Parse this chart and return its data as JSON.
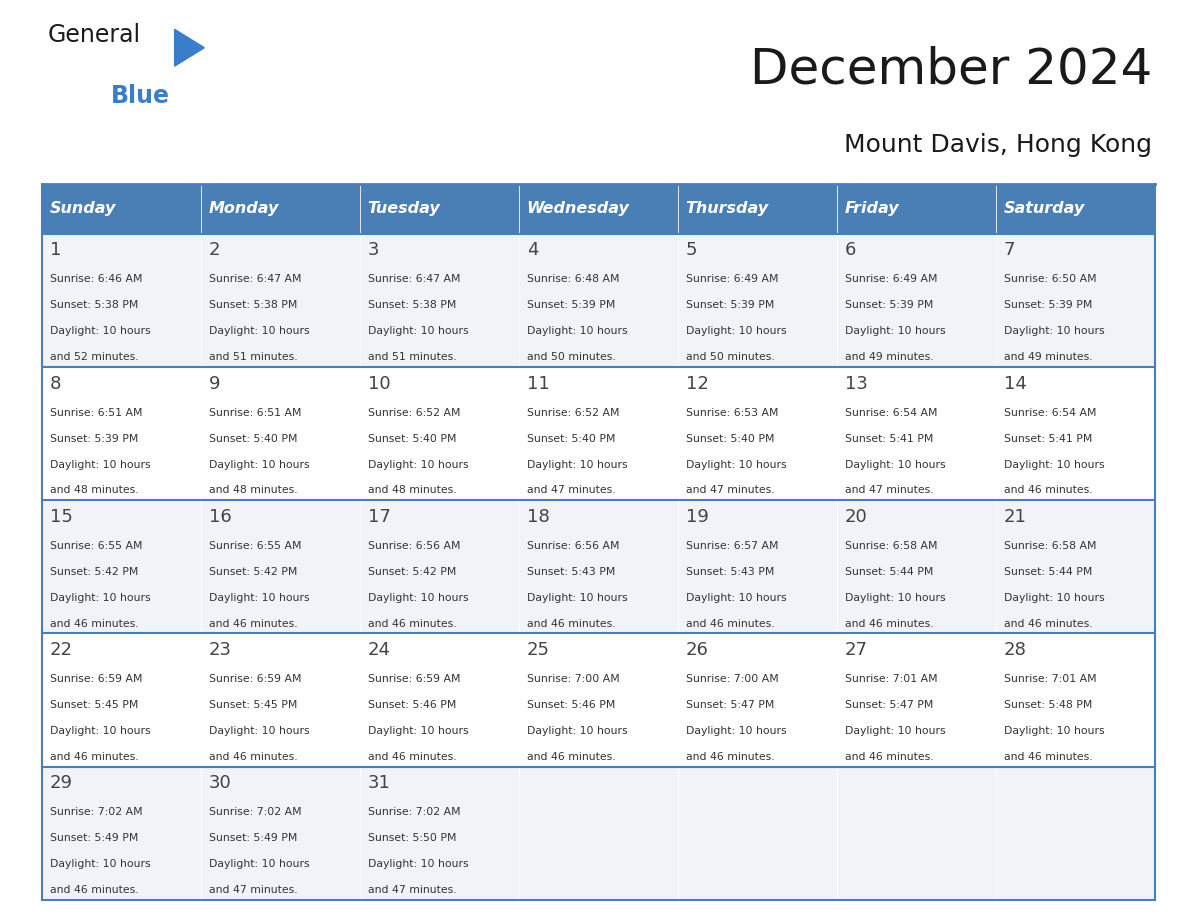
{
  "title": "December 2024",
  "subtitle": "Mount Davis, Hong Kong",
  "header_color": "#4a7fb5",
  "header_text_color": "#ffffff",
  "days_of_week": [
    "Sunday",
    "Monday",
    "Tuesday",
    "Wednesday",
    "Thursday",
    "Friday",
    "Saturday"
  ],
  "calendar": [
    [
      {
        "day": 1,
        "sunrise": "6:46 AM",
        "sunset": "5:38 PM",
        "daylight_hours": 10,
        "daylight_minutes": 52
      },
      {
        "day": 2,
        "sunrise": "6:47 AM",
        "sunset": "5:38 PM",
        "daylight_hours": 10,
        "daylight_minutes": 51
      },
      {
        "day": 3,
        "sunrise": "6:47 AM",
        "sunset": "5:38 PM",
        "daylight_hours": 10,
        "daylight_minutes": 51
      },
      {
        "day": 4,
        "sunrise": "6:48 AM",
        "sunset": "5:39 PM",
        "daylight_hours": 10,
        "daylight_minutes": 50
      },
      {
        "day": 5,
        "sunrise": "6:49 AM",
        "sunset": "5:39 PM",
        "daylight_hours": 10,
        "daylight_minutes": 50
      },
      {
        "day": 6,
        "sunrise": "6:49 AM",
        "sunset": "5:39 PM",
        "daylight_hours": 10,
        "daylight_minutes": 49
      },
      {
        "day": 7,
        "sunrise": "6:50 AM",
        "sunset": "5:39 PM",
        "daylight_hours": 10,
        "daylight_minutes": 49
      }
    ],
    [
      {
        "day": 8,
        "sunrise": "6:51 AM",
        "sunset": "5:39 PM",
        "daylight_hours": 10,
        "daylight_minutes": 48
      },
      {
        "day": 9,
        "sunrise": "6:51 AM",
        "sunset": "5:40 PM",
        "daylight_hours": 10,
        "daylight_minutes": 48
      },
      {
        "day": 10,
        "sunrise": "6:52 AM",
        "sunset": "5:40 PM",
        "daylight_hours": 10,
        "daylight_minutes": 48
      },
      {
        "day": 11,
        "sunrise": "6:52 AM",
        "sunset": "5:40 PM",
        "daylight_hours": 10,
        "daylight_minutes": 47
      },
      {
        "day": 12,
        "sunrise": "6:53 AM",
        "sunset": "5:40 PM",
        "daylight_hours": 10,
        "daylight_minutes": 47
      },
      {
        "day": 13,
        "sunrise": "6:54 AM",
        "sunset": "5:41 PM",
        "daylight_hours": 10,
        "daylight_minutes": 47
      },
      {
        "day": 14,
        "sunrise": "6:54 AM",
        "sunset": "5:41 PM",
        "daylight_hours": 10,
        "daylight_minutes": 46
      }
    ],
    [
      {
        "day": 15,
        "sunrise": "6:55 AM",
        "sunset": "5:42 PM",
        "daylight_hours": 10,
        "daylight_minutes": 46
      },
      {
        "day": 16,
        "sunrise": "6:55 AM",
        "sunset": "5:42 PM",
        "daylight_hours": 10,
        "daylight_minutes": 46
      },
      {
        "day": 17,
        "sunrise": "6:56 AM",
        "sunset": "5:42 PM",
        "daylight_hours": 10,
        "daylight_minutes": 46
      },
      {
        "day": 18,
        "sunrise": "6:56 AM",
        "sunset": "5:43 PM",
        "daylight_hours": 10,
        "daylight_minutes": 46
      },
      {
        "day": 19,
        "sunrise": "6:57 AM",
        "sunset": "5:43 PM",
        "daylight_hours": 10,
        "daylight_minutes": 46
      },
      {
        "day": 20,
        "sunrise": "6:58 AM",
        "sunset": "5:44 PM",
        "daylight_hours": 10,
        "daylight_minutes": 46
      },
      {
        "day": 21,
        "sunrise": "6:58 AM",
        "sunset": "5:44 PM",
        "daylight_hours": 10,
        "daylight_minutes": 46
      }
    ],
    [
      {
        "day": 22,
        "sunrise": "6:59 AM",
        "sunset": "5:45 PM",
        "daylight_hours": 10,
        "daylight_minutes": 46
      },
      {
        "day": 23,
        "sunrise": "6:59 AM",
        "sunset": "5:45 PM",
        "daylight_hours": 10,
        "daylight_minutes": 46
      },
      {
        "day": 24,
        "sunrise": "6:59 AM",
        "sunset": "5:46 PM",
        "daylight_hours": 10,
        "daylight_minutes": 46
      },
      {
        "day": 25,
        "sunrise": "7:00 AM",
        "sunset": "5:46 PM",
        "daylight_hours": 10,
        "daylight_minutes": 46
      },
      {
        "day": 26,
        "sunrise": "7:00 AM",
        "sunset": "5:47 PM",
        "daylight_hours": 10,
        "daylight_minutes": 46
      },
      {
        "day": 27,
        "sunrise": "7:01 AM",
        "sunset": "5:47 PM",
        "daylight_hours": 10,
        "daylight_minutes": 46
      },
      {
        "day": 28,
        "sunrise": "7:01 AM",
        "sunset": "5:48 PM",
        "daylight_hours": 10,
        "daylight_minutes": 46
      }
    ],
    [
      {
        "day": 29,
        "sunrise": "7:02 AM",
        "sunset": "5:49 PM",
        "daylight_hours": 10,
        "daylight_minutes": 46
      },
      {
        "day": 30,
        "sunrise": "7:02 AM",
        "sunset": "5:49 PM",
        "daylight_hours": 10,
        "daylight_minutes": 47
      },
      {
        "day": 31,
        "sunrise": "7:02 AM",
        "sunset": "5:50 PM",
        "daylight_hours": 10,
        "daylight_minutes": 47
      },
      null,
      null,
      null,
      null
    ]
  ],
  "cell_bg_odd": "#f0f4f8",
  "cell_bg_even": "#ffffff",
  "border_color": "#4a7fb5",
  "text_color": "#333333",
  "day_number_color": "#444444"
}
